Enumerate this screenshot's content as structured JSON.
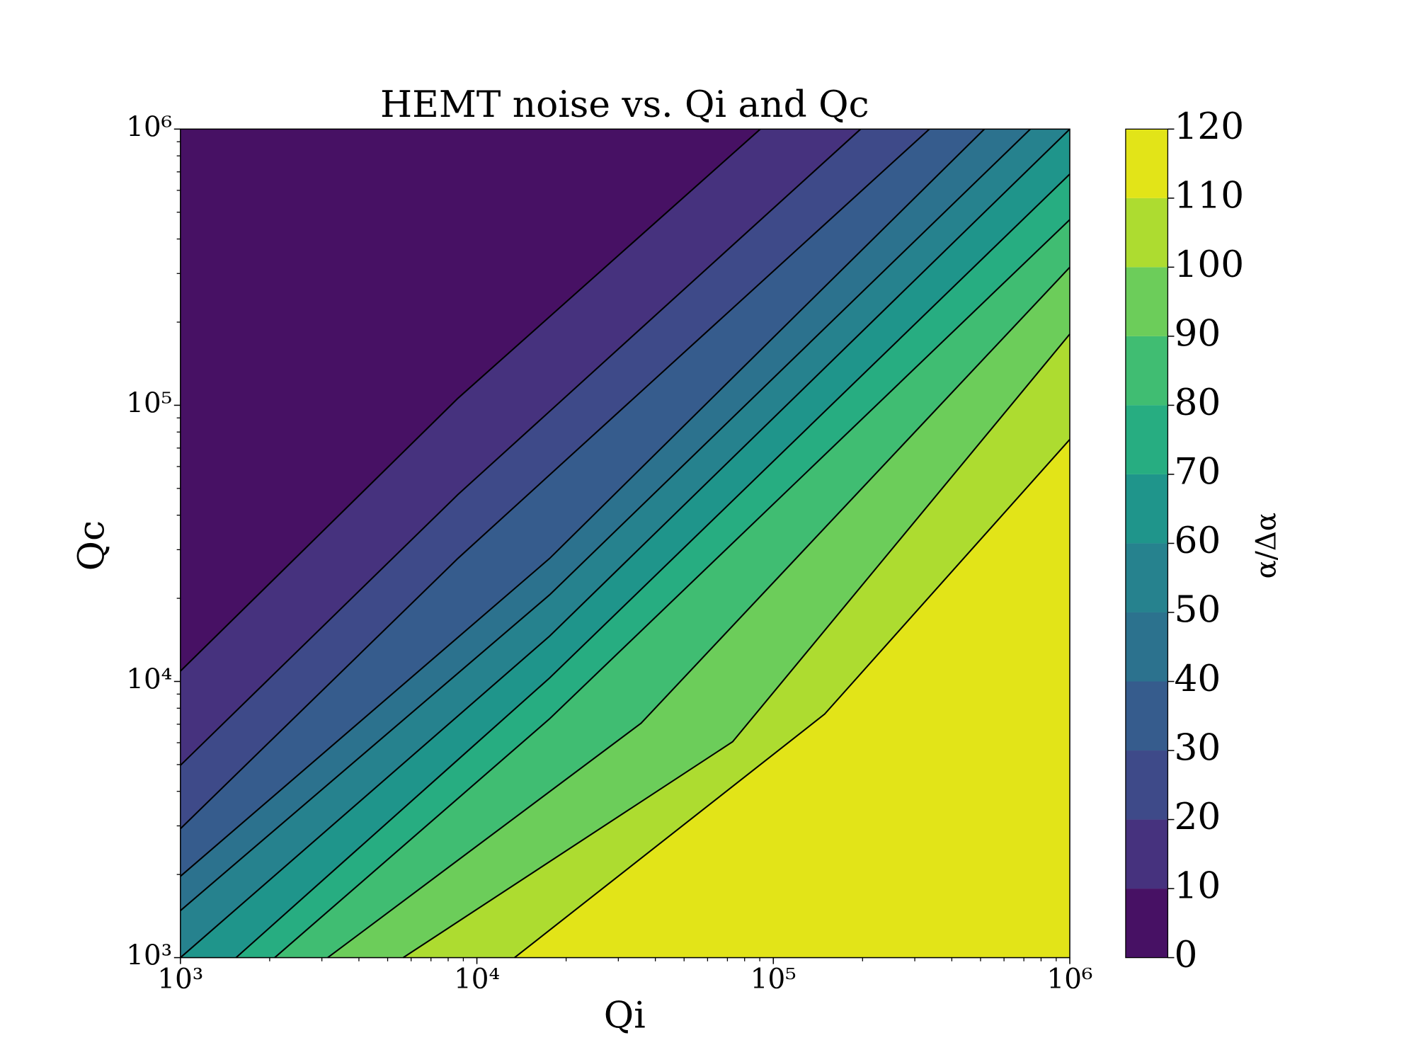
{
  "chart_data": {
    "type": "contourf",
    "title": "HEMT noise vs. Qi and Qc",
    "xlabel": "Qi",
    "ylabel": "Qc",
    "colorbar_label": "α/Δα",
    "xscale": "log",
    "yscale": "log",
    "xlim": [
      1000,
      1000000
    ],
    "ylim": [
      1000,
      1000000
    ],
    "xticks": [
      {
        "value": 1000,
        "label": "10³"
      },
      {
        "value": 10000,
        "label": "10⁴"
      },
      {
        "value": 100000,
        "label": "10⁵"
      },
      {
        "value": 1000000,
        "label": "10⁶"
      }
    ],
    "yticks": [
      {
        "value": 1000,
        "label": "10³"
      },
      {
        "value": 10000,
        "label": "10⁴"
      },
      {
        "value": 100000,
        "label": "10⁵"
      },
      {
        "value": 1000000,
        "label": "10⁶"
      }
    ],
    "xminorticks": [
      2000,
      3000,
      4000,
      5000,
      6000,
      7000,
      8000,
      9000,
      20000,
      30000,
      40000,
      50000,
      60000,
      70000,
      80000,
      90000,
      200000,
      300000,
      400000,
      500000,
      600000,
      700000,
      800000,
      900000
    ],
    "yminorticks": [
      2000,
      3000,
      4000,
      5000,
      6000,
      7000,
      8000,
      9000,
      20000,
      30000,
      40000,
      50000,
      60000,
      70000,
      80000,
      90000,
      200000,
      300000,
      400000,
      500000,
      600000,
      700000,
      800000,
      900000
    ],
    "levels": [
      0,
      10,
      20,
      30,
      40,
      50,
      60,
      70,
      80,
      90,
      100,
      110,
      120
    ],
    "colors": [
      "#471164",
      "#46327e",
      "#3e4a89",
      "#365c8d",
      "#2c728e",
      "#26828e",
      "#1f958b",
      "#27ad81",
      "#40bd72",
      "#6ccd5a",
      "#addc30",
      "#e2e418"
    ],
    "contours": [
      {
        "x": [
          1000,
          8630,
          90400
        ],
        "y": [
          10900,
          106000,
          1000000
        ]
      },
      {
        "x": [
          1000,
          8630,
          197000
        ],
        "y": [
          4970,
          47500,
          1000000
        ]
      },
      {
        "x": [
          1000,
          8630,
          336000
        ],
        "y": [
          2930,
          27900,
          1000000
        ]
      },
      {
        "x": [
          1000,
          17600,
          515000
        ],
        "y": [
          1970,
          27900,
          1000000
        ]
      },
      {
        "x": [
          1000,
          17600,
          736000
        ],
        "y": [
          1480,
          20600,
          1000000
        ]
      },
      {
        "x": [
          1000,
          17600,
          1000000
        ],
        "y": [
          1000,
          14600,
          1000000
        ]
      },
      {
        "x": [
          1540,
          17600,
          1000000
        ],
        "y": [
          1000,
          10300,
          687000
        ]
      },
      {
        "x": [
          2080,
          17600,
          1000000
        ],
        "y": [
          1000,
          7330,
          470000
        ]
      },
      {
        "x": [
          3140,
          35800,
          1000000
        ],
        "y": [
          1000,
          7060,
          316000
        ]
      },
      {
        "x": [
          5640,
          72900,
          1000000
        ],
        "y": [
          1000,
          6050,
          181000
        ]
      },
      {
        "x": [
          13400,
          149000,
          1000000
        ],
        "y": [
          1000,
          7620,
          75200
        ]
      }
    ]
  }
}
